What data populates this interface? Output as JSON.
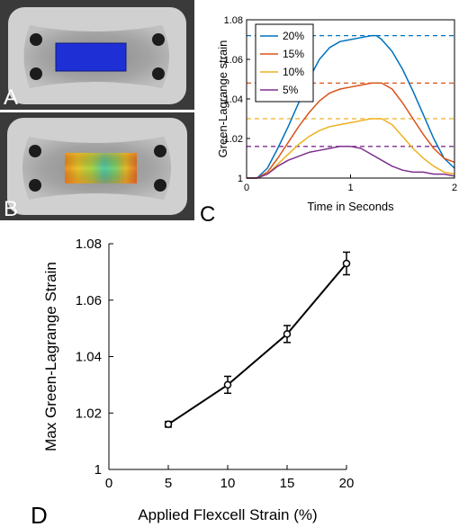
{
  "panels": {
    "A": {
      "label": "A"
    },
    "B": {
      "label": "B"
    },
    "C": {
      "label": "C"
    },
    "D": {
      "label": "D"
    }
  },
  "colors": {
    "photo_bg": "#3a3a3a",
    "gel_light": "#cfd0cf",
    "gel_mid": "#9a9b9a",
    "hole_dark": "#1c1c1c",
    "overlay_blue": "#1f2fd6"
  },
  "chart_data": [
    {
      "type": "line",
      "xlabel": "Time in Seconds",
      "ylabel": "Green-Lagrange strain",
      "xlim": [
        0,
        2
      ],
      "ylim": [
        1,
        1.08
      ],
      "xticks": [
        "0",
        "1",
        "2"
      ],
      "yticks": [
        "1",
        "1.02",
        "1.04",
        "1.06",
        "1.08"
      ],
      "grid": false,
      "legend_placement": "top-left",
      "series": [
        {
          "name": "20%",
          "color": "#0072bd",
          "peak": 1.072,
          "x": [
            0,
            0.1,
            0.2,
            0.3,
            0.4,
            0.5,
            0.6,
            0.7,
            0.8,
            0.9,
            1.0,
            1.1,
            1.2,
            1.25,
            1.3,
            1.4,
            1.5,
            1.6,
            1.7,
            1.8,
            1.9,
            2.0
          ],
          "y": [
            1.0,
            1.0,
            1.005,
            1.015,
            1.026,
            1.038,
            1.05,
            1.06,
            1.066,
            1.069,
            1.07,
            1.071,
            1.072,
            1.072,
            1.07,
            1.064,
            1.055,
            1.044,
            1.032,
            1.02,
            1.01,
            1.005
          ]
        },
        {
          "name": "15%",
          "color": "#d95319",
          "peak": 1.048,
          "x": [
            0,
            0.1,
            0.2,
            0.3,
            0.4,
            0.5,
            0.6,
            0.7,
            0.8,
            0.9,
            1.0,
            1.1,
            1.2,
            1.3,
            1.4,
            1.5,
            1.6,
            1.7,
            1.8,
            1.9,
            2.0
          ],
          "y": [
            1.0,
            1.0,
            1.003,
            1.01,
            1.018,
            1.026,
            1.033,
            1.039,
            1.043,
            1.045,
            1.046,
            1.047,
            1.048,
            1.048,
            1.045,
            1.038,
            1.03,
            1.022,
            1.015,
            1.01,
            1.008
          ]
        },
        {
          "name": "10%",
          "color": "#edb120",
          "peak": 1.03,
          "x": [
            0,
            0.1,
            0.2,
            0.3,
            0.4,
            0.5,
            0.6,
            0.7,
            0.8,
            0.9,
            1.0,
            1.1,
            1.2,
            1.3,
            1.4,
            1.5,
            1.6,
            1.7,
            1.8,
            1.9,
            2.0
          ],
          "y": [
            1.0,
            1.0,
            1.002,
            1.007,
            1.012,
            1.017,
            1.021,
            1.024,
            1.026,
            1.027,
            1.028,
            1.029,
            1.03,
            1.03,
            1.027,
            1.021,
            1.015,
            1.01,
            1.006,
            1.003,
            1.002
          ]
        },
        {
          "name": "5%",
          "color": "#7e2f8e",
          "peak": 1.016,
          "x": [
            0,
            0.1,
            0.2,
            0.3,
            0.4,
            0.5,
            0.6,
            0.7,
            0.8,
            0.9,
            1.0,
            1.1,
            1.2,
            1.3,
            1.4,
            1.5,
            1.6,
            1.7,
            1.8,
            1.9,
            2.0
          ],
          "y": [
            1.0,
            1.0,
            1.002,
            1.006,
            1.009,
            1.011,
            1.013,
            1.014,
            1.015,
            1.016,
            1.016,
            1.015,
            1.012,
            1.009,
            1.006,
            1.004,
            1.003,
            1.003,
            1.002,
            1.002,
            1.001
          ]
        }
      ]
    },
    {
      "type": "line",
      "xlabel": "Applied Flexcell Strain (%)",
      "ylabel": "Max Green-Lagrange Strain",
      "xlim": [
        0,
        20
      ],
      "ylim": [
        1,
        1.08
      ],
      "xticks": [
        "0",
        "5",
        "10",
        "15",
        "20"
      ],
      "yticks": [
        "1",
        "1.02",
        "1.04",
        "1.06",
        "1.08"
      ],
      "grid": false,
      "series": [
        {
          "color": "#000000",
          "x": [
            5,
            10,
            15,
            20
          ],
          "y": [
            1.016,
            1.03,
            1.048,
            1.073
          ],
          "error": [
            0.001,
            0.003,
            0.003,
            0.004
          ]
        }
      ]
    }
  ]
}
